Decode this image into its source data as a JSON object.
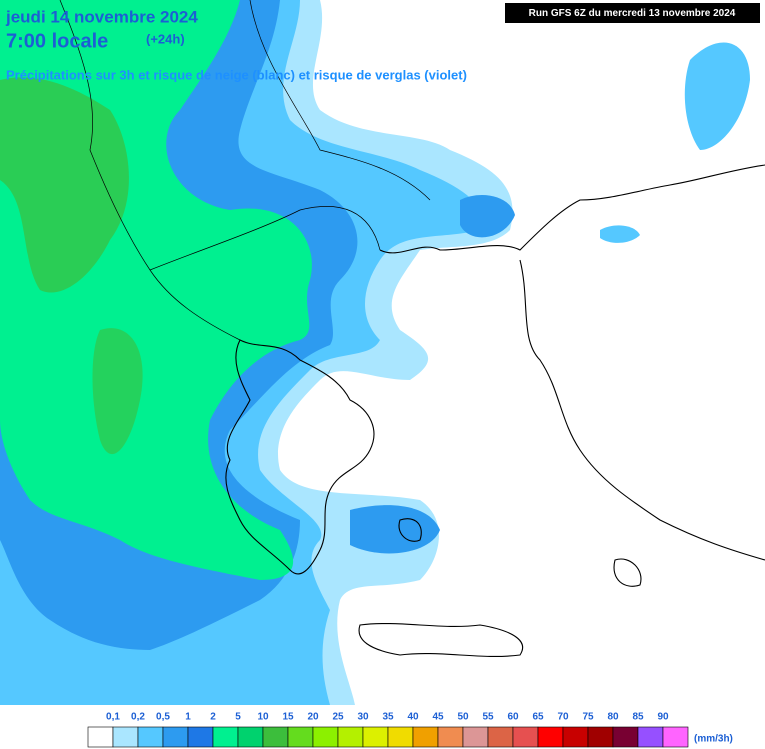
{
  "header": {
    "date": "jeudi 14 novembre 2024",
    "time": "7:00 locale",
    "lead": "(+24h)",
    "subtitle": "Précipitations sur 3h et risque de neige (blanc) et risque de verglas (violet)",
    "run": "Run GFS 6Z du mercredi 13 novembre 2024"
  },
  "legend": {
    "labels": [
      "0,1",
      "0,2",
      "0,5",
      "1",
      "2",
      "5",
      "10",
      "15",
      "20",
      "25",
      "30",
      "35",
      "40",
      "45",
      "50",
      "55",
      "60",
      "65",
      "70",
      "75",
      "80",
      "85",
      "90"
    ],
    "colors": [
      "#ffffff",
      "#aae6ff",
      "#55c8ff",
      "#2d9bf0",
      "#1e78e6",
      "#00f090",
      "#00d26e",
      "#3cbe3c",
      "#64dc1e",
      "#8cf000",
      "#b4f000",
      "#dcf000",
      "#f0dc00",
      "#f0a000",
      "#f08c50",
      "#dc9696",
      "#dc6446",
      "#e65050",
      "#ff0000",
      "#c80000",
      "#a00000",
      "#780032",
      "#9650ff",
      "#ff64ff"
    ],
    "unit": "(mm/3h)"
  }
}
